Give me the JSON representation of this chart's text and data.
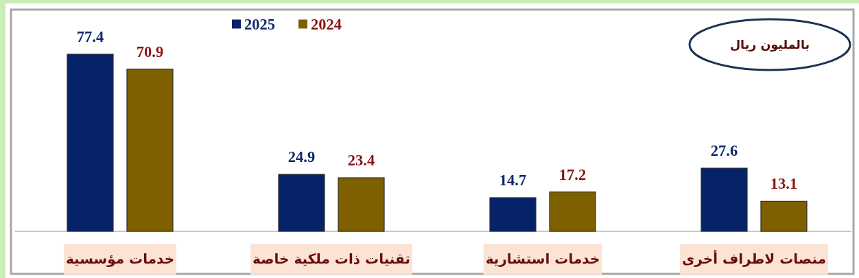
{
  "chart_data": {
    "type": "bar",
    "categories": [
      "خدمات مؤسسية",
      "تقنيات ذات ملكية خاصة",
      "خدمات استشارية",
      "منصات لاطراف أخرى"
    ],
    "series": [
      {
        "name": "2025",
        "color": "#062268",
        "values": [
          77.4,
          24.9,
          14.7,
          27.6
        ]
      },
      {
        "name": "2024",
        "color": "#7f6000",
        "values": [
          70.9,
          23.4,
          17.2,
          13.1
        ]
      }
    ],
    "data_labels": true,
    "legend": "top",
    "annotations": [
      "بالمليون ريال"
    ]
  }
}
